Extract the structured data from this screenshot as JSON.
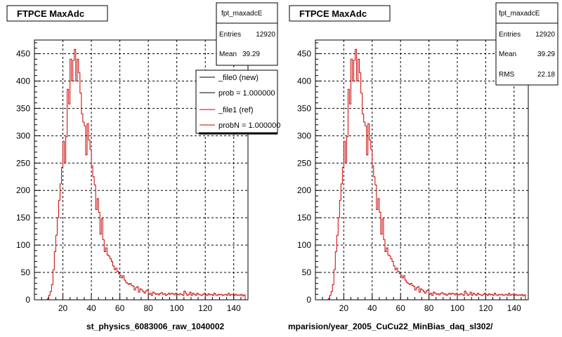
{
  "panels": [
    {
      "title": "FTPCE MaxAdc",
      "stats": {
        "name": "fpt_maxadcE",
        "rows": [
          {
            "label": "Entries",
            "value": "12920"
          },
          {
            "label": "Mean",
            "value": "39.29"
          }
        ]
      },
      "footer": "st_physics_6083006_raw_1040002",
      "legend": [
        {
          "label": "_file0 (new)",
          "color": "#000000"
        },
        {
          "label": "prob = 1.000000",
          "color": "#000000"
        },
        {
          "label": "_file1 (ref)",
          "color": "#cc0000"
        },
        {
          "label": "probN = 1.000000",
          "color": "#cc0000"
        }
      ]
    },
    {
      "title": "FTPCE MaxAdc",
      "stats": {
        "name": "fpt_maxadcE",
        "rows": [
          {
            "label": "Entries",
            "value": "12920"
          },
          {
            "label": "Mean",
            "value": "39.29"
          },
          {
            "label": "RMS",
            "value": "22.18"
          }
        ]
      },
      "footer": "mparision/year_2005_CuCu22_MinBias_daq_sl302/"
    }
  ],
  "chart_data": [
    {
      "type": "histogram",
      "title": "FTPCE MaxAdc",
      "xlim": [
        0,
        150
      ],
      "ylim": [
        0,
        475
      ],
      "xticks": [
        20,
        40,
        60,
        80,
        100,
        120,
        140
      ],
      "yticks": [
        0,
        50,
        100,
        150,
        200,
        250,
        300,
        350,
        400,
        450
      ],
      "grid": true,
      "legend_position": "top-right",
      "bin_width": 1,
      "bin_start": 0,
      "series": [
        {
          "color": "#cc0000",
          "values": [
            0,
            0,
            0,
            0,
            0,
            0,
            0,
            0,
            0,
            2,
            8,
            15,
            28,
            55,
            88,
            118,
            150,
            182,
            212,
            242,
            290,
            250,
            298,
            385,
            358,
            440,
            400,
            438,
            458,
            400,
            440,
            415,
            378,
            340,
            325,
            318,
            265,
            322,
            292,
            275,
            245,
            225,
            210,
            165,
            185,
            160,
            120,
            148,
            110,
            88,
            95,
            82,
            80,
            75,
            70,
            62,
            55,
            58,
            52,
            48,
            45,
            40,
            44,
            36,
            32,
            30,
            28,
            30,
            26,
            25,
            18,
            22,
            24,
            14,
            20,
            18,
            15,
            12,
            16,
            18,
            10,
            12,
            8,
            14,
            12,
            10,
            11,
            9,
            12,
            13,
            10,
            11,
            8,
            10,
            12,
            10,
            12,
            11,
            9,
            12,
            10,
            9,
            11,
            10,
            8,
            16,
            12,
            8,
            10,
            14,
            8,
            12,
            10,
            8,
            12,
            10,
            9,
            8,
            10,
            12,
            10,
            8,
            11,
            9,
            10,
            8,
            12,
            9,
            8,
            10,
            9,
            10,
            8,
            9,
            10,
            8,
            12,
            8,
            10,
            9,
            8,
            10,
            8,
            9,
            8,
            10,
            7,
            9
          ]
        }
      ]
    },
    {
      "type": "histogram",
      "title": "FTPCE MaxAdc",
      "xlim": [
        0,
        150
      ],
      "ylim": [
        0,
        475
      ],
      "xticks": [
        20,
        40,
        60,
        80,
        100,
        120,
        140
      ],
      "yticks": [
        0,
        50,
        100,
        150,
        200,
        250,
        300,
        350,
        400,
        450
      ],
      "grid": true,
      "bin_width": 1,
      "bin_start": 0,
      "series": [
        {
          "color": "#cc0000",
          "values": [
            0,
            0,
            0,
            0,
            0,
            0,
            0,
            0,
            0,
            2,
            8,
            15,
            28,
            55,
            88,
            118,
            150,
            182,
            212,
            242,
            290,
            250,
            298,
            385,
            358,
            440,
            400,
            438,
            458,
            400,
            440,
            415,
            378,
            340,
            325,
            318,
            265,
            322,
            292,
            275,
            245,
            225,
            210,
            165,
            185,
            160,
            120,
            148,
            110,
            88,
            95,
            82,
            80,
            75,
            70,
            62,
            55,
            58,
            52,
            48,
            45,
            40,
            44,
            36,
            32,
            30,
            28,
            30,
            26,
            25,
            18,
            22,
            24,
            14,
            20,
            18,
            15,
            12,
            16,
            18,
            10,
            12,
            8,
            14,
            12,
            10,
            11,
            9,
            12,
            13,
            10,
            11,
            8,
            10,
            12,
            10,
            12,
            11,
            9,
            12,
            10,
            9,
            11,
            10,
            8,
            16,
            12,
            8,
            10,
            14,
            8,
            12,
            10,
            8,
            12,
            10,
            9,
            8,
            10,
            12,
            10,
            8,
            11,
            9,
            10,
            8,
            12,
            9,
            8,
            10,
            9,
            10,
            8,
            9,
            10,
            8,
            12,
            8,
            10,
            9,
            8,
            10,
            8,
            9,
            8,
            10,
            7,
            9
          ]
        }
      ]
    }
  ]
}
